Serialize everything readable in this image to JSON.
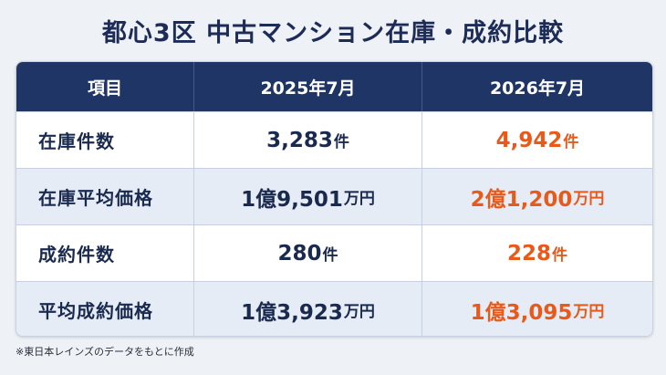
{
  "title": "都心3区 中古マンション在庫・成約比較",
  "table": {
    "headers": [
      "項目",
      "2025年7月",
      "2026年7月"
    ],
    "rows": [
      {
        "label": "在庫件数",
        "v2025": "3,283",
        "u2025": "件",
        "v2026": "4,942",
        "u2026": "件"
      },
      {
        "label": "在庫平均価格",
        "v2025": "1億9,501",
        "u2025": "万円",
        "v2026": "2億1,200",
        "u2026": "万円"
      },
      {
        "label": "成約件数",
        "v2025": "280",
        "u2025": "件",
        "v2026": "228",
        "u2026": "件"
      },
      {
        "label": "平均成約価格",
        "v2025": "1億3,923",
        "u2025": "万円",
        "v2026": "1億3,095",
        "u2026": "万円"
      }
    ]
  },
  "note": "※東日本レインズのデータをもとに作成",
  "colors": {
    "header_bg": "#1f3566",
    "accent_orange": "#e8591a",
    "alt_row": "#e6ecf5",
    "text_navy": "#1a2a4f"
  }
}
